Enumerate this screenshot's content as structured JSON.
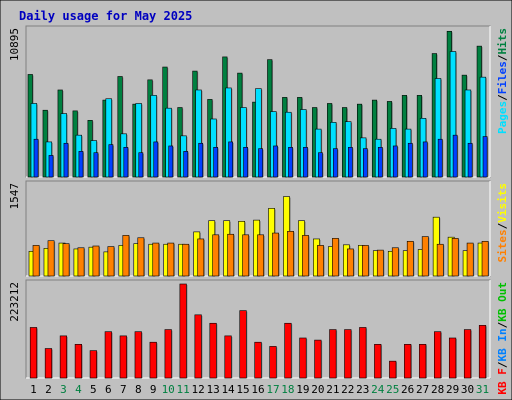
{
  "title": "Daily usage for May 2025",
  "colors": {
    "background": "#c0c0c0",
    "plot": "#c0c0c0",
    "title": "#0000c0",
    "hits": "#008040",
    "files": "#0040ff",
    "pages": "#00e0ff",
    "visits": "#ffff00",
    "sites": "#ff8000",
    "kb_in": "#0080ff",
    "kb_out": "#00c000",
    "kb_f": "#ff0000",
    "day_normal": "#000000",
    "day_weekend": "#008040"
  },
  "chart_data": {
    "type": "bar",
    "title": "Daily usage for May 2025",
    "categories": [
      "1",
      "2",
      "3",
      "4",
      "5",
      "6",
      "7",
      "8",
      "9",
      "10",
      "11",
      "12",
      "13",
      "14",
      "15",
      "16",
      "17",
      "18",
      "19",
      "20",
      "21",
      "22",
      "23",
      "24",
      "25",
      "26",
      "27",
      "28",
      "29",
      "30",
      "31"
    ],
    "weekend_days": [
      "3",
      "4",
      "10",
      "11",
      "17",
      "18",
      "24",
      "25",
      "31"
    ],
    "panels": [
      {
        "name": "hits-files-pages",
        "ymax_label": "10895",
        "ylim": [
          0,
          10895
        ],
        "legend": [
          {
            "text": "Pages",
            "color": "#00e0ff"
          },
          {
            "text": "Files",
            "color": "#0040ff"
          },
          {
            "text": "Hits",
            "color": "#008040"
          }
        ],
        "series": [
          {
            "name": "Hits",
            "values": [
              7600,
              4950,
              6450,
              4900,
              4200,
              5700,
              7450,
              5400,
              7200,
              8150,
              5150,
              7850,
              5750,
              8900,
              7700,
              5550,
              8700,
              5900,
              5900,
              5150,
              5450,
              5150,
              5400,
              5700,
              5600,
              6050,
              6050,
              9150,
              10800,
              7550,
              9700
            ]
          },
          {
            "name": "Files",
            "values": [
              2800,
              1600,
              2500,
              1900,
              1800,
              2400,
              2200,
              1800,
              2600,
              2300,
              1900,
              2500,
              2200,
              2600,
              2200,
              2100,
              2300,
              2200,
              2200,
              1800,
              2100,
              2200,
              2100,
              2200,
              2300,
              2500,
              2600,
              2800,
              3100,
              2500,
              3000
            ]
          },
          {
            "name": "Pages",
            "values": [
              5450,
              2600,
              4700,
              3100,
              2700,
              5800,
              3200,
              5450,
              6050,
              5100,
              3050,
              6450,
              4300,
              6600,
              5150,
              6550,
              4850,
              4800,
              5000,
              3550,
              4050,
              4100,
              2900,
              2800,
              3600,
              3550,
              4350,
              7300,
              9300,
              6450,
              7400
            ]
          }
        ]
      },
      {
        "name": "visits-sites",
        "ymax_label": "1547",
        "ylim": [
          0,
          1547
        ],
        "legend": [
          {
            "text": "Sites",
            "color": "#ff8000"
          },
          {
            "text": "Visits",
            "color": "#ffff00"
          }
        ],
        "series": [
          {
            "name": "Visits",
            "values": [
              420,
              470,
              560,
              460,
              490,
              410,
              520,
              550,
              540,
              540,
              540,
              750,
              940,
              940,
              930,
              950,
              1150,
              1350,
              940,
              630,
              500,
              530,
              520,
              430,
              420,
              430,
              450,
              1000,
              660,
              430,
              560
            ]
          },
          {
            "name": "Sites",
            "values": [
              520,
              600,
              550,
              480,
              510,
              500,
              690,
              650,
              560,
              560,
              540,
              630,
              700,
              710,
              700,
              700,
              730,
              760,
              690,
              520,
              640,
              460,
              520,
              440,
              480,
              590,
              670,
              540,
              640,
              560,
              590
            ]
          }
        ]
      },
      {
        "name": "kbytes",
        "ymax_label": "223212",
        "ylim": [
          0,
          223212
        ],
        "legend": [
          {
            "text": "KB F",
            "color": "#ff0000"
          },
          {
            "text": "KB In",
            "color": "#0080ff"
          },
          {
            "text": "KB Out",
            "color": "#00c000"
          }
        ],
        "series": [
          {
            "name": "KB F",
            "values": [
              120000,
              70000,
              100000,
              80000,
              65000,
              110000,
              100000,
              110000,
              85000,
              115000,
              223212,
              150000,
              130000,
              100000,
              160000,
              85000,
              75000,
              130000,
              95000,
              90000,
              115000,
              115000,
              120000,
              80000,
              40000,
              80000,
              80000,
              110000,
              95000,
              115000,
              125000
            ]
          }
        ]
      }
    ]
  }
}
